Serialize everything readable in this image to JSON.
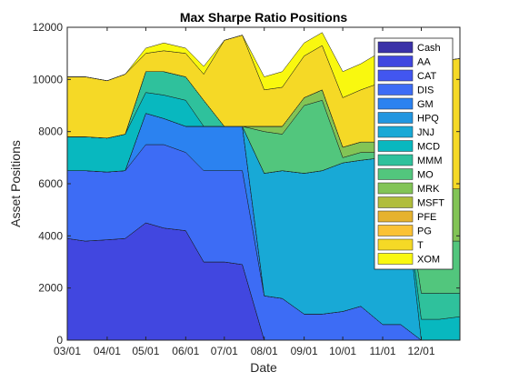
{
  "chart_data": {
    "type": "area",
    "stacked": true,
    "title": "Max Sharpe Ratio Positions",
    "xlabel": "Date",
    "ylabel": "Asset Positions",
    "ylim": [
      0,
      12000
    ],
    "yticks": [
      0,
      2000,
      4000,
      6000,
      8000,
      10000,
      12000
    ],
    "xlim": [
      "03/01",
      "12/31"
    ],
    "x_tick_labels": [
      "03/01",
      "04/01",
      "05/01",
      "06/01",
      "07/01",
      "08/01",
      "09/01",
      "10/01",
      "11/01",
      "12/01"
    ],
    "grid": false,
    "legend_position": "top-right",
    "x": [
      "03/01",
      "03/15",
      "04/01",
      "04/15",
      "05/01",
      "05/15",
      "06/01",
      "06/15",
      "07/01",
      "07/15",
      "08/01",
      "08/15",
      "09/01",
      "09/15",
      "10/01",
      "10/15",
      "11/01",
      "11/15",
      "12/01",
      "12/15",
      "12/31"
    ],
    "series": [
      {
        "name": "Cash",
        "color": "#3b32a8",
        "values": [
          0,
          0,
          0,
          0,
          0,
          0,
          0,
          0,
          0,
          0,
          0,
          0,
          0,
          0,
          0,
          0,
          0,
          0,
          0,
          0,
          0
        ]
      },
      {
        "name": "AA",
        "color": "#4147e0",
        "values": [
          3900,
          3800,
          3850,
          3900,
          4500,
          4300,
          4200,
          3000,
          3000,
          2900,
          0,
          0,
          0,
          0,
          0,
          0,
          0,
          0,
          0,
          0,
          0
        ]
      },
      {
        "name": "CAT",
        "color": "#4256f0",
        "values": [
          0,
          0,
          0,
          0,
          0,
          0,
          0,
          0,
          0,
          0,
          0,
          0,
          0,
          0,
          0,
          0,
          0,
          0,
          0,
          0,
          0
        ]
      },
      {
        "name": "DIS",
        "color": "#3d6cf5",
        "values": [
          2600,
          2700,
          2600,
          2600,
          3000,
          3200,
          3000,
          3500,
          3500,
          3600,
          1700,
          1600,
          1000,
          1000,
          1100,
          1300,
          600,
          600,
          0,
          0,
          0
        ]
      },
      {
        "name": "GM",
        "color": "#2b82f0",
        "values": [
          0,
          0,
          0,
          0,
          1200,
          1000,
          1000,
          1700,
          1700,
          1700,
          0,
          0,
          0,
          0,
          0,
          0,
          0,
          0,
          0,
          0,
          0
        ]
      },
      {
        "name": "HPQ",
        "color": "#2196e0",
        "values": [
          0,
          0,
          0,
          0,
          0,
          0,
          0,
          0,
          0,
          0,
          0,
          0,
          0,
          0,
          0,
          0,
          0,
          0,
          0,
          0,
          0
        ]
      },
      {
        "name": "JNJ",
        "color": "#18a9d6",
        "values": [
          0,
          0,
          0,
          0,
          0,
          0,
          0,
          0,
          0,
          0,
          4700,
          4900,
          5400,
          5500,
          5700,
          5600,
          6400,
          6500,
          0,
          0,
          0
        ]
      },
      {
        "name": "MCD",
        "color": "#08b8bf",
        "values": [
          1300,
          1300,
          1300,
          1400,
          800,
          900,
          1000,
          0,
          0,
          0,
          0,
          0,
          0,
          0,
          0,
          0,
          0,
          0,
          800,
          800,
          900
        ]
      },
      {
        "name": "MMM",
        "color": "#2fc19c",
        "values": [
          0,
          0,
          0,
          0,
          800,
          900,
          900,
          1000,
          0,
          0,
          0,
          0,
          0,
          0,
          0,
          0,
          0,
          0,
          1000,
          1000,
          900
        ]
      },
      {
        "name": "MO",
        "color": "#52c67d",
        "values": [
          0,
          0,
          0,
          0,
          0,
          0,
          0,
          0,
          0,
          0,
          1600,
          1400,
          2600,
          2700,
          200,
          300,
          200,
          200,
          1900,
          2000,
          2000
        ]
      },
      {
        "name": "MRK",
        "color": "#82c456",
        "values": [
          0,
          0,
          0,
          0,
          0,
          0,
          0,
          0,
          0,
          0,
          200,
          300,
          300,
          400,
          400,
          400,
          400,
          400,
          2100,
          2000,
          2000
        ]
      },
      {
        "name": "MSFT",
        "color": "#b0bd3b",
        "values": [
          0,
          0,
          0,
          0,
          0,
          0,
          0,
          0,
          0,
          0,
          0,
          0,
          0,
          0,
          0,
          0,
          0,
          0,
          0,
          0,
          0
        ]
      },
      {
        "name": "PFE",
        "color": "#e6b22f",
        "values": [
          0,
          0,
          0,
          0,
          0,
          0,
          0,
          0,
          0,
          0,
          0,
          0,
          0,
          0,
          0,
          0,
          0,
          0,
          0,
          0,
          0
        ]
      },
      {
        "name": "PG",
        "color": "#fbc234",
        "values": [
          0,
          0,
          0,
          0,
          0,
          0,
          0,
          0,
          0,
          0,
          0,
          0,
          0,
          0,
          0,
          0,
          0,
          0,
          0,
          0,
          0
        ]
      },
      {
        "name": "T",
        "color": "#f5d926",
        "values": [
          2300,
          2300,
          2200,
          2300,
          700,
          800,
          900,
          1000,
          3300,
          3500,
          1400,
          1500,
          1600,
          1700,
          1900,
          2000,
          2300,
          2300,
          4600,
          4900,
          5000
        ]
      },
      {
        "name": "XOM",
        "color": "#f9f80f",
        "values": [
          0,
          0,
          0,
          0,
          200,
          300,
          200,
          300,
          0,
          0,
          500,
          600,
          500,
          500,
          1000,
          1000,
          1200,
          1100,
          0,
          0,
          0
        ]
      }
    ]
  }
}
